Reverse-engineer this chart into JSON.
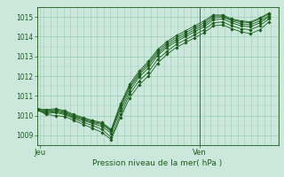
{
  "xlabel": "Pression niveau de la mer( hPa )",
  "bg_color": "#cce8dc",
  "grid_color": "#99ccb8",
  "line_color": "#1a5c1a",
  "ylim": [
    1008.5,
    1015.5
  ],
  "yticks": [
    1009,
    1010,
    1011,
    1012,
    1013,
    1014,
    1015
  ],
  "xlim": [
    0,
    26
  ],
  "jeu_x": 0.3,
  "ven_x": 17.5,
  "ven_line_x": 17.5,
  "series": [
    [
      1010.3,
      1010.05,
      1010.0,
      1009.95,
      1009.75,
      1009.55,
      1009.35,
      1009.15,
      1008.78,
      1009.9,
      1010.9,
      1011.55,
      1012.0,
      1012.65,
      1013.1,
      1013.45,
      1013.7,
      1013.95,
      1014.2,
      1014.55,
      1014.6,
      1014.4,
      1014.25,
      1014.15,
      1014.35,
      1014.75
    ],
    [
      1010.3,
      1010.1,
      1010.15,
      1010.05,
      1009.85,
      1009.65,
      1009.5,
      1009.3,
      1008.9,
      1010.05,
      1011.1,
      1011.75,
      1012.2,
      1012.85,
      1013.25,
      1013.6,
      1013.85,
      1014.1,
      1014.35,
      1014.7,
      1014.75,
      1014.55,
      1014.4,
      1014.35,
      1014.55,
      1014.9
    ],
    [
      1010.3,
      1010.15,
      1010.2,
      1010.1,
      1009.9,
      1009.75,
      1009.6,
      1009.45,
      1009.1,
      1010.25,
      1011.25,
      1011.95,
      1012.4,
      1013.05,
      1013.45,
      1013.75,
      1014.0,
      1014.25,
      1014.5,
      1014.85,
      1014.9,
      1014.7,
      1014.55,
      1014.5,
      1014.7,
      1015.0
    ],
    [
      1010.3,
      1010.2,
      1010.25,
      1010.15,
      1009.95,
      1009.8,
      1009.65,
      1009.55,
      1009.2,
      1010.4,
      1011.4,
      1012.05,
      1012.55,
      1013.15,
      1013.55,
      1013.85,
      1014.1,
      1014.35,
      1014.6,
      1014.95,
      1015.0,
      1014.8,
      1014.65,
      1014.6,
      1014.8,
      1015.05
    ],
    [
      1010.35,
      1010.25,
      1010.3,
      1010.2,
      1010.0,
      1009.85,
      1009.7,
      1009.6,
      1009.25,
      1010.5,
      1011.5,
      1012.15,
      1012.65,
      1013.25,
      1013.65,
      1013.95,
      1014.2,
      1014.45,
      1014.7,
      1015.05,
      1015.05,
      1014.85,
      1014.75,
      1014.7,
      1014.9,
      1015.15
    ],
    [
      1010.35,
      1010.3,
      1010.35,
      1010.25,
      1010.05,
      1009.9,
      1009.75,
      1009.65,
      1009.3,
      1010.6,
      1011.6,
      1012.25,
      1012.75,
      1013.35,
      1013.75,
      1014.05,
      1014.3,
      1014.55,
      1014.8,
      1015.1,
      1015.1,
      1014.9,
      1014.8,
      1014.75,
      1014.95,
      1015.2
    ]
  ],
  "n_xminor": 36,
  "n_yminor": 7
}
